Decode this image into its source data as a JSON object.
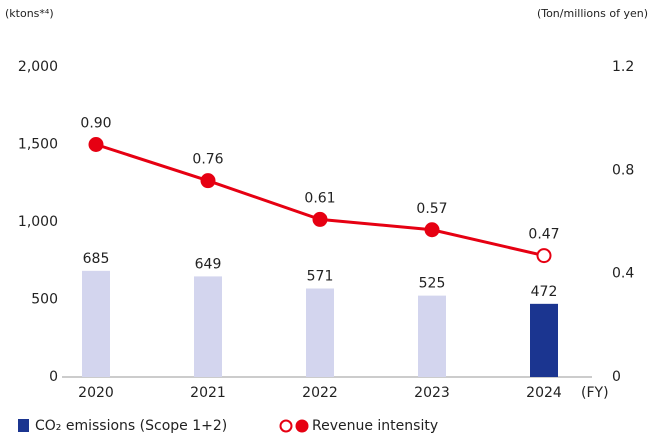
{
  "chart_data": {
    "type": "combo",
    "y_label": "(ktons*⁴)",
    "y2_label": "(Ton/millions of yen)",
    "x_label": "(FY)",
    "categories": [
      "2020",
      "2021",
      "2022",
      "2023",
      "2024"
    ],
    "ylim": [
      0,
      2000
    ],
    "yticks": [
      0,
      {
        "value": 500,
        "label": "500"
      },
      {
        "value": 1000,
        "label": "1,000"
      },
      {
        "value": 1500,
        "label": "1,500"
      },
      {
        "value": 2000,
        "label": "2,000"
      }
    ],
    "y2lim": [
      0,
      1.2
    ],
    "y2ticks": [
      0,
      0.4,
      0.8,
      1.2
    ],
    "series": [
      {
        "name": "CO₂ emissions (Scope 1+2)",
        "type": "bar",
        "color": "#1b3590",
        "colors": [
          "#d3d5ee",
          "#d3d5ee",
          "#d3d5ee",
          "#d3d5ee",
          "#1b3590"
        ],
        "values": [
          685,
          649,
          571,
          525,
          472
        ]
      },
      {
        "name": "Revenue intensity",
        "type": "line",
        "axis": "y2",
        "color": "#e60012",
        "marker_fills": [
          "#e60012",
          "#e60012",
          "#e60012",
          "#e60012",
          "#ffffff"
        ],
        "values": [
          0.9,
          0.76,
          0.61,
          0.57,
          0.47
        ],
        "value_labels": [
          "0.90",
          "0.76",
          "0.61",
          "0.57",
          "0.47"
        ]
      }
    ]
  }
}
